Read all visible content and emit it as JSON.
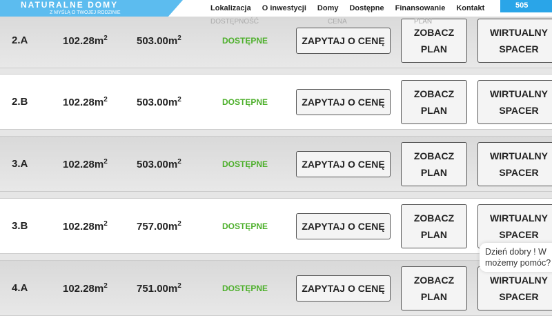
{
  "header": {
    "logo_name": "NATURALNE DOMY",
    "slogan": "Z MYŚLĄ O TWOJEJ RODZINIE",
    "nav": [
      "Lokalizacja",
      "O inwestycji",
      "Domy",
      "Dostępne",
      "Finansowanie",
      "Kontakt"
    ],
    "ghost_columns": [
      "DOSTĘPNOŚĆ",
      "CENA",
      "PLAN"
    ],
    "phone": "505"
  },
  "units": [
    {
      "id": "2.A",
      "area": "102.28m",
      "plot": "503.00m",
      "status": "DOSTĘPNE"
    },
    {
      "id": "2.B",
      "area": "102.28m",
      "plot": "503.00m",
      "status": "DOSTĘPNE"
    },
    {
      "id": "3.A",
      "area": "102.28m",
      "plot": "503.00m",
      "status": "DOSTĘPNE"
    },
    {
      "id": "3.B",
      "area": "102.28m",
      "plot": "757.00m",
      "status": "DOSTĘPNE"
    },
    {
      "id": "4.A",
      "area": "102.28m",
      "plot": "751.00m",
      "status": "DOSTĘPNE"
    }
  ],
  "labels": {
    "ask": "ZAPYTAJ O CENĘ",
    "plan1": "ZOBACZ",
    "plan2": "PLAN",
    "tour1": "WIRTUALNY",
    "tour2": "SPACER",
    "sup": "2"
  },
  "chat": {
    "line1": "Dzień dobry ! W",
    "line2": "możemy pomóc?"
  },
  "colors": {
    "status": "#4caf2a",
    "brand": "#5cbcef"
  }
}
